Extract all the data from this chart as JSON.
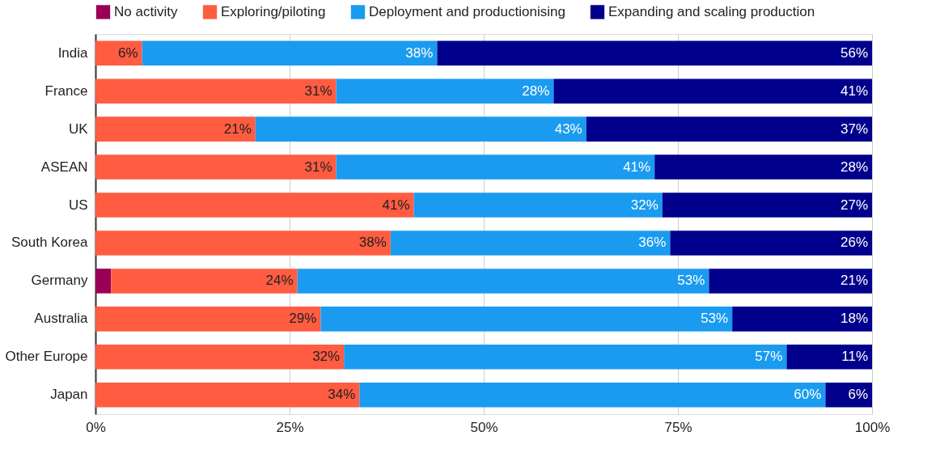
{
  "chart_data": {
    "type": "bar",
    "orientation": "horizontal",
    "stacked": true,
    "legend": "top",
    "grid": "x",
    "categories": [
      "India",
      "France",
      "UK",
      "ASEAN",
      "US",
      "South Korea",
      "Germany",
      "Australia",
      "Other Europe",
      "Japan"
    ],
    "xlim": [
      0,
      100
    ],
    "xticks": [
      {
        "value": 0,
        "label": "0%"
      },
      {
        "value": 25,
        "label": "25%"
      },
      {
        "value": 50,
        "label": "50%"
      },
      {
        "value": 75,
        "label": "75%"
      },
      {
        "value": 100,
        "label": "100%"
      }
    ],
    "series": [
      {
        "name": "No activity",
        "color": "#990055",
        "values": [
          0,
          0,
          0,
          0,
          0,
          0,
          2,
          0,
          0,
          0
        ],
        "value_labels": [
          null,
          null,
          null,
          null,
          null,
          null,
          null,
          null,
          null,
          null
        ]
      },
      {
        "name": "Exploring/piloting",
        "color": "#ff5c41",
        "values": [
          6,
          31,
          20.6,
          31,
          41,
          38,
          24,
          29,
          32,
          34
        ],
        "value_labels": [
          "6%",
          "31%",
          "21%",
          "31%",
          "41%",
          "38%",
          "24%",
          "29%",
          "32%",
          "34%"
        ]
      },
      {
        "name": "Deployment and productionising",
        "color": "#1a9bf0",
        "values": [
          38,
          28,
          42.6,
          41,
          32,
          36,
          53,
          53,
          57,
          60
        ],
        "value_labels": [
          "38%",
          "28%",
          "43%",
          "41%",
          "32%",
          "36%",
          "53%",
          "53%",
          "57%",
          "60%"
        ]
      },
      {
        "name": "Expanding and scaling production",
        "color": "#00008c",
        "values": [
          56,
          41,
          36.8,
          28,
          27,
          26,
          21,
          18,
          11,
          6
        ],
        "value_labels": [
          "56%",
          "41%",
          "37%",
          "28%",
          "27%",
          "26%",
          "21%",
          "18%",
          "11%",
          "6%"
        ]
      }
    ]
  }
}
